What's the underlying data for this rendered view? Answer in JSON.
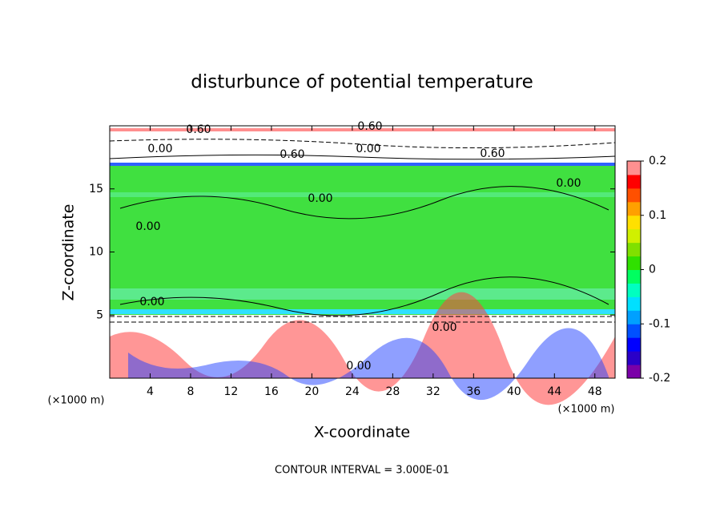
{
  "chart_data": {
    "type": "contour",
    "title": "disturbunce of potential temperature",
    "x_label": "X-coordinate",
    "y_label": "Z-coordinate",
    "x_unit": "(×1000 m)",
    "footer": "CONTOUR INTERVAL = 3.000E-01",
    "xlim": [
      0,
      50
    ],
    "ylim": [
      0,
      20
    ],
    "xticks": [
      4,
      8,
      12,
      16,
      20,
      24,
      28,
      32,
      36,
      40,
      44,
      48
    ],
    "yticks": [
      5,
      10,
      15
    ],
    "contour_labels": [
      "0.60",
      "0.60",
      "0.00",
      "0.00",
      "0.60",
      "0.60",
      "0.00",
      "0.00",
      "0.00",
      "0.00",
      "0.00",
      "0.00"
    ],
    "colorbar": {
      "lim": [
        -0.2,
        0.2
      ],
      "ticks": [
        -0.2,
        -0.1,
        0,
        0.1,
        0.2
      ],
      "colors": [
        "#7a00a8",
        "#2a00c8",
        "#0000ff",
        "#0050ff",
        "#00a0ff",
        "#00e0ff",
        "#00ffc0",
        "#00ff60",
        "#30e000",
        "#80e000",
        "#d0f000",
        "#ffe000",
        "#ffa000",
        "#ff5000",
        "#ff0000",
        "#ff9090"
      ]
    }
  }
}
